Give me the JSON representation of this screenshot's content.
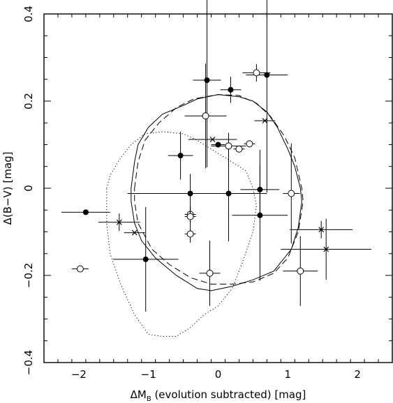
{
  "chart_data": {
    "type": "scatter",
    "title": "",
    "xlabel": {
      "prefix": "ΔM",
      "sub": "B",
      "suffix": " (evolution subtracted) [mag]"
    },
    "ylabel": "Δ(B−V) [mag]",
    "xlim": [
      -2.5,
      2.5
    ],
    "ylim": [
      -0.4,
      0.4
    ],
    "x_ticks": [
      -2,
      -1,
      0,
      1,
      2
    ],
    "x_tick_labels": [
      "−2",
      "−1",
      "0",
      "1",
      "2"
    ],
    "y_ticks": [
      -0.4,
      -0.2,
      0,
      0.2,
      0.4
    ],
    "y_tick_labels": [
      "−0.4",
      "−0.2",
      "0",
      "0.2",
      "0.4"
    ],
    "grid": false,
    "legend": "none",
    "series": [
      {
        "marker": "filled-circle",
        "points": [
          {
            "x": -1.9,
            "y": -0.055,
            "xerr": 0.35,
            "yerr": 0
          },
          {
            "x": -0.16,
            "y": 0.248,
            "xerr": 0.2,
            "yerr": 0.2
          },
          {
            "x": 0.18,
            "y": 0.226,
            "xerr": 0.15,
            "yerr": 0.03
          },
          {
            "x": 0.7,
            "y": 0.26,
            "xerr": 0.3,
            "yerr": 0.27
          },
          {
            "x": 0.0,
            "y": 0.1,
            "xerr": 0.1,
            "yerr": 0
          },
          {
            "x": -0.54,
            "y": 0.075,
            "xerr": 0.18,
            "yerr": 0.055
          },
          {
            "x": -0.4,
            "y": -0.012,
            "xerr": 0.9,
            "yerr": 0.045
          },
          {
            "x": 0.15,
            "y": -0.012,
            "xerr": 0.55,
            "yerr": 0.11
          },
          {
            "x": 0.6,
            "y": -0.003,
            "xerr": 0.28,
            "yerr": 0.055
          },
          {
            "x": 0.6,
            "y": -0.062,
            "xerr": 0.4,
            "yerr": 0.15
          },
          {
            "x": -1.04,
            "y": -0.163,
            "xerr": 0.47,
            "yerr": 0.12
          }
        ]
      },
      {
        "marker": "open-circle",
        "points": [
          {
            "x": 0.55,
            "y": 0.265,
            "xerr": 0.2,
            "yerr": 0.02
          },
          {
            "x": -0.18,
            "y": 0.166,
            "xerr": 0.3,
            "yerr": 0.12
          },
          {
            "x": 0.15,
            "y": 0.097,
            "xerr": 0.25,
            "yerr": 0.03
          },
          {
            "x": 0.3,
            "y": 0.09,
            "xerr": 0.08,
            "yerr": 0
          },
          {
            "x": 0.45,
            "y": 0.102,
            "xerr": 0.08,
            "yerr": 0
          },
          {
            "x": -0.4,
            "y": -0.06,
            "xerr": 0.08,
            "yerr": 0.02
          },
          {
            "x": -0.4,
            "y": -0.065,
            "xerr": 0.08,
            "yerr": 0.02
          },
          {
            "x": -0.4,
            "y": -0.105,
            "xerr": 0.08,
            "yerr": 0.02
          },
          {
            "x": 1.05,
            "y": -0.012,
            "xerr": 0.12,
            "yerr": 0.115
          },
          {
            "x": 1.18,
            "y": -0.19,
            "xerr": 0.25,
            "yerr": 0.08
          },
          {
            "x": -0.12,
            "y": -0.195,
            "xerr": 0.15,
            "yerr": 0.075
          },
          {
            "x": -1.98,
            "y": -0.185,
            "xerr": 0.12,
            "yerr": 0
          }
        ]
      },
      {
        "marker": "cross",
        "points": [
          {
            "x": -0.08,
            "y": 0.112,
            "xerr": 0.35,
            "yerr": 0
          },
          {
            "x": 0.67,
            "y": 0.155,
            "xerr": 0.15,
            "yerr": 0
          },
          {
            "x": -1.42,
            "y": -0.078,
            "xerr": 0.3,
            "yerr": 0.02
          },
          {
            "x": -1.2,
            "y": -0.102,
            "xerr": 0.15,
            "yerr": 0
          },
          {
            "x": 1.48,
            "y": -0.095,
            "xerr": 0.45,
            "yerr": 0.02
          },
          {
            "x": 1.55,
            "y": -0.14,
            "xerr": 0.65,
            "yerr": 0.07
          }
        ]
      }
    ],
    "contours": [
      {
        "style": "solid",
        "points": [
          [
            -1.25,
            0.0
          ],
          [
            -1.2,
            0.06
          ],
          [
            -1.15,
            0.1
          ],
          [
            -1.0,
            0.14
          ],
          [
            -0.8,
            0.17
          ],
          [
            -0.5,
            0.19
          ],
          [
            -0.3,
            0.205
          ],
          [
            0.0,
            0.215
          ],
          [
            0.3,
            0.21
          ],
          [
            0.5,
            0.2
          ],
          [
            0.7,
            0.175
          ],
          [
            0.85,
            0.14
          ],
          [
            1.0,
            0.09
          ],
          [
            1.1,
            0.05
          ],
          [
            1.18,
            0.0
          ],
          [
            1.2,
            -0.03
          ],
          [
            1.15,
            -0.09
          ],
          [
            1.05,
            -0.14
          ],
          [
            0.8,
            -0.19
          ],
          [
            0.5,
            -0.21
          ],
          [
            0.2,
            -0.225
          ],
          [
            -0.1,
            -0.235
          ],
          [
            -0.3,
            -0.23
          ],
          [
            -0.6,
            -0.2
          ],
          [
            -0.9,
            -0.16
          ],
          [
            -1.1,
            -0.12
          ],
          [
            -1.2,
            -0.08
          ],
          [
            -1.25,
            -0.03
          ],
          [
            -1.25,
            0.0
          ]
        ]
      },
      {
        "style": "dashed",
        "points": [
          [
            -1.2,
            0.0
          ],
          [
            -1.15,
            0.06
          ],
          [
            -1.05,
            0.11
          ],
          [
            -0.85,
            0.15
          ],
          [
            -0.6,
            0.185
          ],
          [
            -0.35,
            0.205
          ],
          [
            0.0,
            0.215
          ],
          [
            0.3,
            0.213
          ],
          [
            0.55,
            0.195
          ],
          [
            0.75,
            0.165
          ],
          [
            0.95,
            0.12
          ],
          [
            1.1,
            0.07
          ],
          [
            1.2,
            0.0
          ],
          [
            1.22,
            -0.03
          ],
          [
            1.15,
            -0.1
          ],
          [
            1.0,
            -0.16
          ],
          [
            0.8,
            -0.195
          ],
          [
            0.5,
            -0.215
          ],
          [
            0.2,
            -0.22
          ],
          [
            -0.1,
            -0.22
          ],
          [
            -0.4,
            -0.205
          ],
          [
            -0.7,
            -0.175
          ],
          [
            -0.95,
            -0.14
          ],
          [
            -1.15,
            -0.08
          ],
          [
            -1.2,
            -0.03
          ],
          [
            -1.2,
            0.0
          ]
        ]
      },
      {
        "style": "dotted",
        "points": [
          [
            -1.6,
            0.0
          ],
          [
            -1.55,
            0.03
          ],
          [
            -1.4,
            0.07
          ],
          [
            -1.25,
            0.1
          ],
          [
            -1.05,
            0.125
          ],
          [
            -0.8,
            0.13
          ],
          [
            -0.5,
            0.125
          ],
          [
            -0.3,
            0.11
          ],
          [
            -0.1,
            0.09
          ],
          [
            0.15,
            0.065
          ],
          [
            0.4,
            0.04
          ],
          [
            0.5,
            0.0
          ],
          [
            0.55,
            -0.04
          ],
          [
            0.5,
            -0.1
          ],
          [
            0.35,
            -0.17
          ],
          [
            0.2,
            -0.23
          ],
          [
            0.0,
            -0.27
          ],
          [
            -0.2,
            -0.29
          ],
          [
            -0.4,
            -0.32
          ],
          [
            -0.6,
            -0.34
          ],
          [
            -0.8,
            -0.34
          ],
          [
            -1.0,
            -0.335
          ],
          [
            -1.2,
            -0.29
          ],
          [
            -1.4,
            -0.22
          ],
          [
            -1.55,
            -0.15
          ],
          [
            -1.6,
            -0.08
          ],
          [
            -1.6,
            0.0
          ]
        ]
      }
    ]
  }
}
